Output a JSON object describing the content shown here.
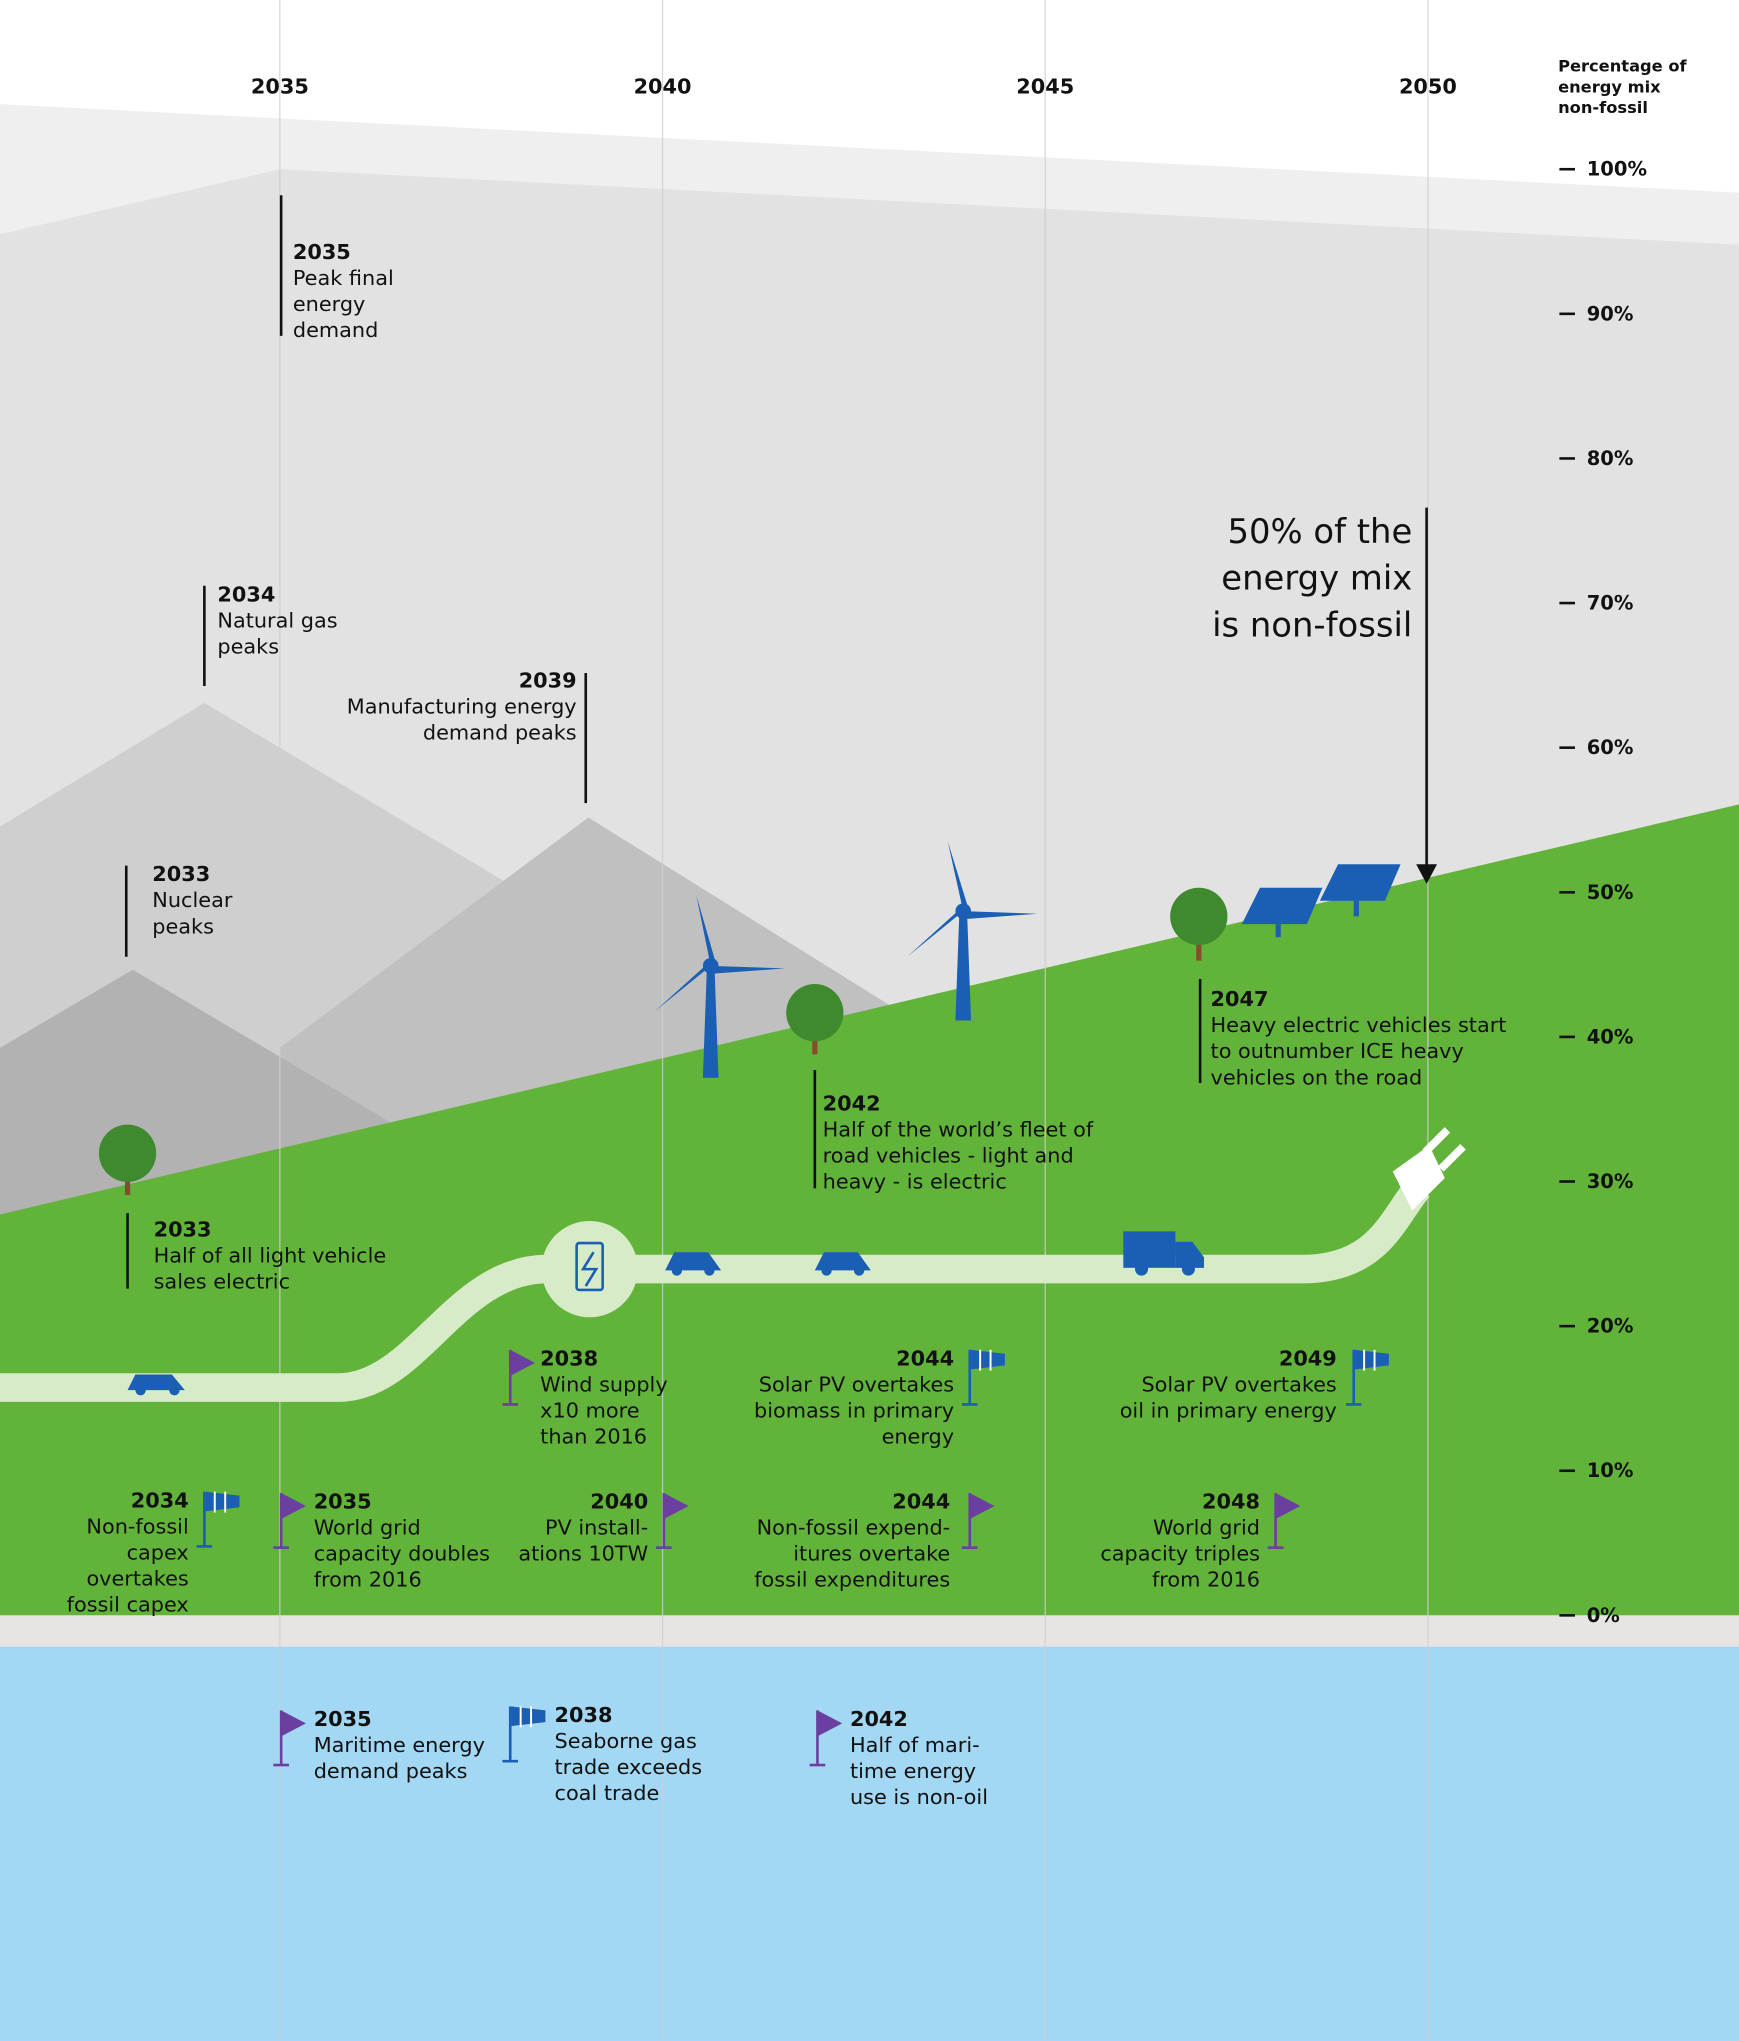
{
  "header": {
    "years": [
      "2035",
      "2040",
      "2045",
      "2050"
    ],
    "axis_title": [
      "Percentage of",
      "energy mix",
      "non-fossil"
    ]
  },
  "ticks": [
    "100%",
    "90%",
    "80%",
    "70%",
    "60%",
    "50%",
    "40%",
    "30%",
    "20%",
    "10%",
    "0%"
  ],
  "callout": [
    "50% of the",
    "energy mix",
    "is non-fossil"
  ],
  "milestones": [
    {
      "year": "2035",
      "lines": [
        "Peak final",
        "energy",
        "demand"
      ]
    },
    {
      "year": "2034",
      "lines": [
        "Natural gas",
        "peaks"
      ]
    },
    {
      "year": "2039",
      "lines": [
        "Manufacturing energy",
        "demand peaks"
      ]
    },
    {
      "year": "2033",
      "lines": [
        "Nuclear",
        "peaks"
      ]
    },
    {
      "year": "2033",
      "lines": [
        "Half of all light vehicle",
        "sales electric"
      ]
    },
    {
      "year": "2042",
      "lines": [
        "Half of the world’s fleet of",
        "road vehicles - light and",
        "heavy - is electric"
      ]
    },
    {
      "year": "2047",
      "lines": [
        "Heavy electric vehicles start",
        "to outnumber ICE heavy",
        "vehicles on the road"
      ]
    },
    {
      "year": "2038",
      "lines": [
        "Wind supply",
        "x10 more",
        "than 2016"
      ]
    },
    {
      "year": "2044",
      "lines": [
        "Solar PV overtakes",
        "biomass in primary",
        "energy"
      ]
    },
    {
      "year": "2049",
      "lines": [
        "Solar PV overtakes",
        "oil in primary energy"
      ]
    },
    {
      "year": "2034",
      "lines": [
        "Non-fossil",
        "capex",
        "overtakes",
        "fossil capex"
      ]
    },
    {
      "year": "2035",
      "lines": [
        "World grid",
        "capacity doubles",
        "from 2016"
      ]
    },
    {
      "year": "2040",
      "lines": [
        "PV install-",
        "ations 10TW"
      ]
    },
    {
      "year": "2044",
      "lines": [
        "Non-fossil expend-",
        "itures overtake",
        "fossil expenditures"
      ]
    },
    {
      "year": "2048",
      "lines": [
        "World grid",
        "capacity triples",
        "from 2016"
      ]
    },
    {
      "year": "2035",
      "lines": [
        "Maritime energy",
        "demand peaks"
      ]
    },
    {
      "year": "2038",
      "lines": [
        "Seaborne gas",
        "trade exceeds",
        "coal trade"
      ]
    },
    {
      "year": "2042",
      "lines": [
        "Half of mari-",
        "time energy",
        "use is non-oil"
      ]
    }
  ]
}
